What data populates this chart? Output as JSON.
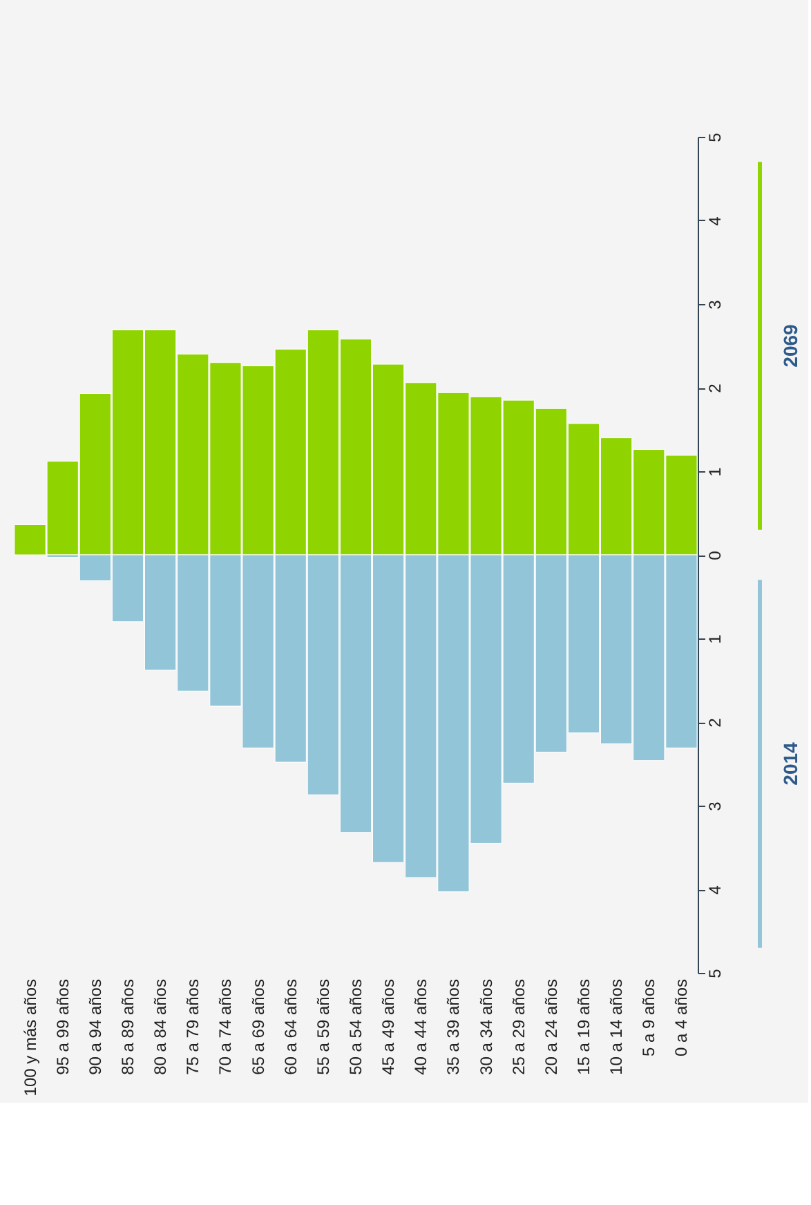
{
  "chart_data": {
    "type": "bar",
    "categories": [
      "100 y más años",
      "95 a 99 años",
      "90 a 94 años",
      "85 a 89 años",
      "80 a 84 años",
      "75 a 79 años",
      "70 a 74 años",
      "65 a 69 años",
      "60 a 64 años",
      "55 a 59 años",
      "50 a 54 años",
      "45 a 49 años",
      "40 a 44 años",
      "35 a 39 años",
      "30 a 34 años",
      "25 a 29 años",
      "20 a 24 años",
      "15 a 19 años",
      "10 a 14 años",
      "5 a 9 años",
      "0 a 4 años"
    ],
    "series": [
      {
        "name": "2069",
        "color": "#8fd400",
        "values": [
          0.36,
          1.12,
          1.93,
          2.69,
          2.69,
          2.4,
          2.3,
          2.26,
          2.46,
          2.69,
          2.58,
          2.28,
          2.06,
          1.94,
          1.89,
          1.85,
          1.75,
          1.57,
          1.4,
          1.26,
          1.19
        ]
      },
      {
        "name": "2014",
        "color": "#92c5d8",
        "values": [
          null,
          -0.03,
          -0.31,
          -0.8,
          -1.38,
          -1.63,
          -1.81,
          -2.31,
          -2.48,
          -2.87,
          -3.32,
          -3.68,
          -3.86,
          -4.03,
          -3.45,
          -2.73,
          -2.36,
          -2.13,
          -2.26,
          -2.46,
          -2.31
        ]
      }
    ],
    "ylim": [
      -5,
      5
    ],
    "yticks": [
      {
        "value": -5,
        "label": "5"
      },
      {
        "value": -4,
        "label": "4"
      },
      {
        "value": -3,
        "label": "3"
      },
      {
        "value": -2,
        "label": "2"
      },
      {
        "value": -1,
        "label": "1"
      },
      0,
      1,
      2,
      3,
      4,
      5
    ],
    "stacked": true,
    "grid": false
  }
}
